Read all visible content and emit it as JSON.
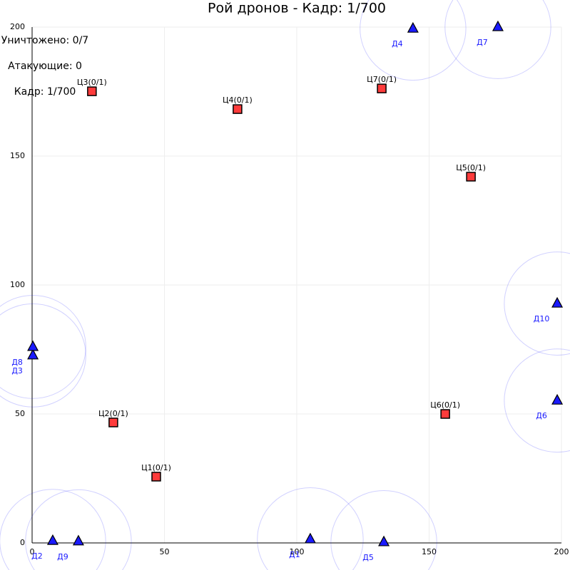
{
  "chart_data": {
    "type": "scatter",
    "title": "Рой дронов - Кадр: 1/700",
    "annotations": [
      "Уничтожено: 0/7",
      "Атакующие: 0",
      "Кадр: 1/700"
    ],
    "xlim": [
      0,
      200
    ],
    "ylim": [
      0,
      200
    ],
    "xticks": [
      0,
      50,
      100,
      150,
      200
    ],
    "yticks": [
      0,
      50,
      100,
      150,
      200
    ],
    "grid": true,
    "series": [
      {
        "marker": "square",
        "color": "#ff3b3b",
        "labels": [
          "Ц1(0/1)",
          "Ц2(0/1)",
          "Ц3(0/1)",
          "Ц4(0/1)",
          "Ц5(0/1)",
          "Ц6(0/1)",
          "Ц7(0/1)"
        ],
        "x": [
          46.9,
          30.7,
          22.6,
          77.6,
          165.8,
          156.1,
          132.1
        ],
        "values": [
          25.7,
          46.7,
          175.1,
          168.2,
          142.0,
          50.0,
          176.2
        ]
      },
      {
        "marker": "triangle",
        "color": "#1a1aff",
        "radius": 20,
        "labels": [
          "Д1",
          "Д2",
          "Д3",
          "Д4",
          "Д5",
          "Д6",
          "Д7",
          "Д8",
          "Д9",
          "Д10"
        ],
        "x": [
          105.1,
          7.8,
          0.3,
          143.9,
          132.9,
          198.4,
          176.0,
          0.3,
          17.5,
          198.4
        ],
        "values": [
          1.4,
          0.8,
          72.7,
          199.4,
          0.3,
          55.2,
          200.0,
          76.0,
          0.6,
          92.8
        ]
      }
    ]
  }
}
